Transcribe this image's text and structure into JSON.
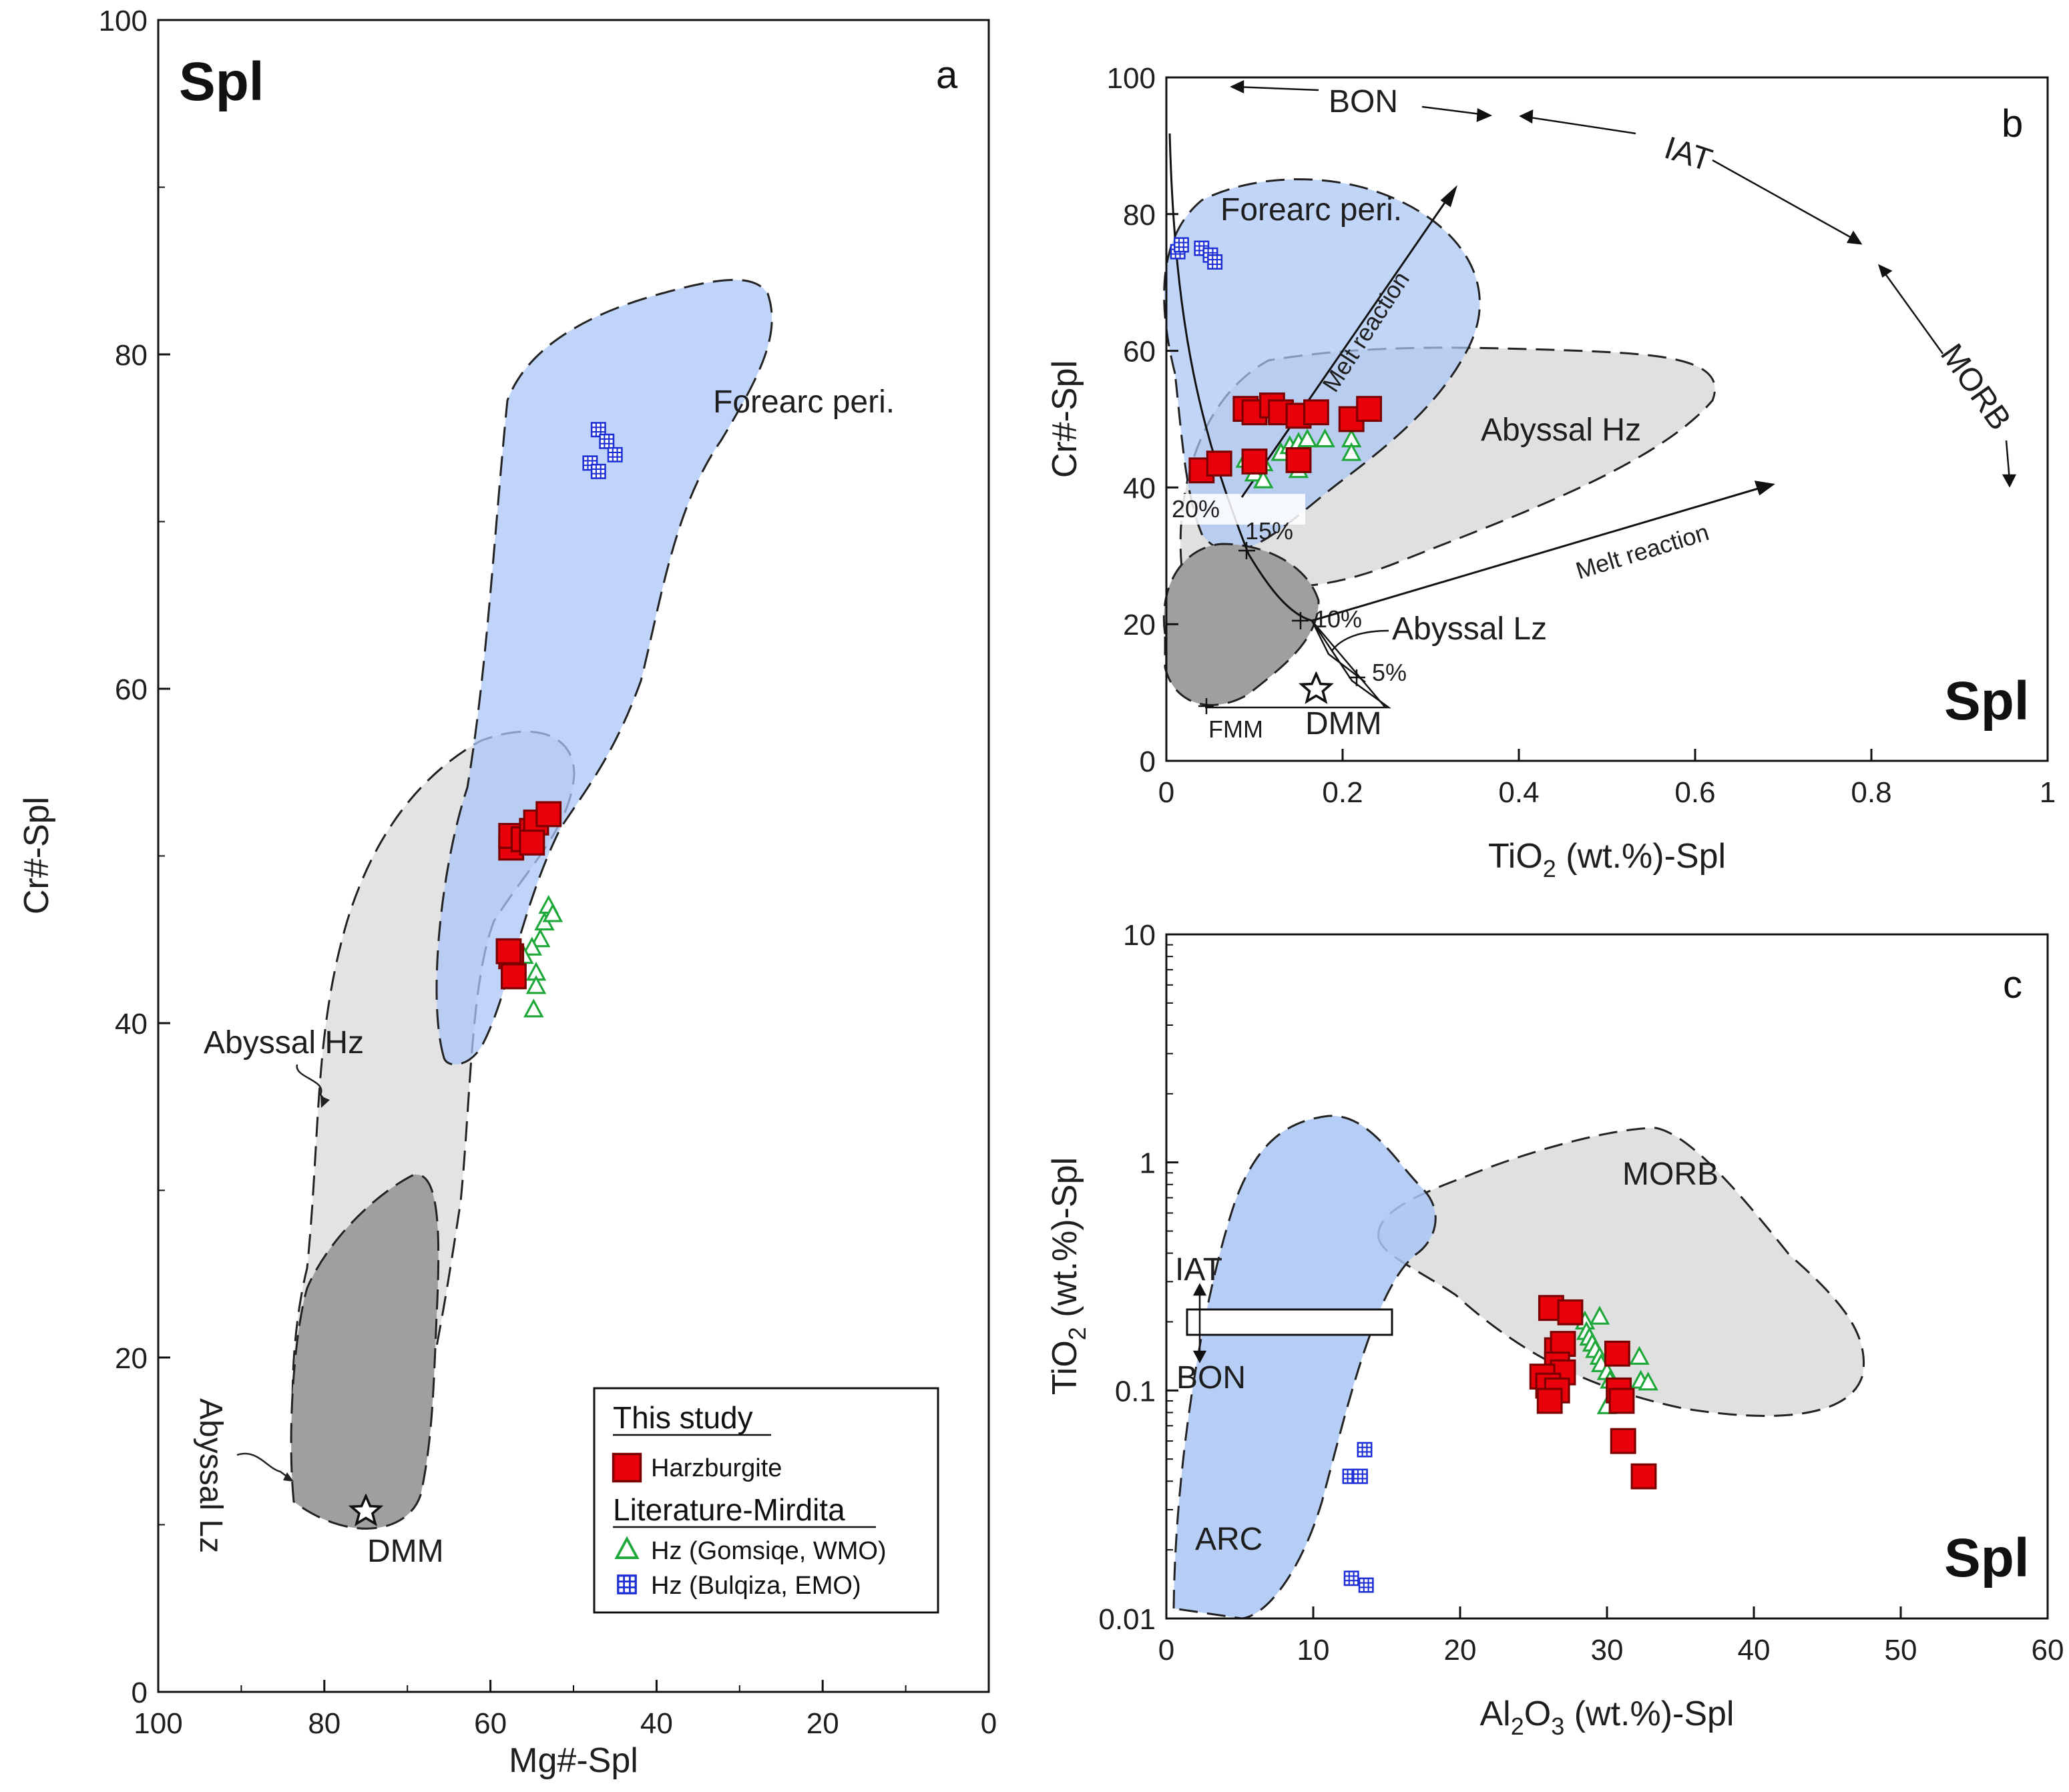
{
  "chart_data": [
    {
      "panel": "a",
      "type": "scatter",
      "mineral_label": "Spl",
      "panel_letter": "a",
      "xlabel": "Mg#-Spl",
      "ylabel": "Cr#-Spl",
      "xlim": [
        100,
        0
      ],
      "ylim": [
        0,
        100
      ],
      "xticks": [
        "100",
        "80",
        "60",
        "40",
        "20",
        "0"
      ],
      "yticks": [
        "0",
        "20",
        "40",
        "60",
        "80",
        "100"
      ],
      "fields": {
        "forearc": "Forearc peri.",
        "abyssal_hz": "Abyssal Hz",
        "abyssal_lz": "Abyssal Lz",
        "dmm": "DMM"
      },
      "dmm_point": {
        "x": 75,
        "y": 10.8
      },
      "series": [
        {
          "name": "Harzburgite",
          "marker": "red-square",
          "points": [
            [
              57.5,
              50.5
            ],
            [
              57.5,
              51.2
            ],
            [
              56,
              51
            ],
            [
              55,
              51.5
            ],
            [
              54.5,
              52
            ],
            [
              53,
              52.5
            ],
            [
              55,
              50.8
            ],
            [
              57.5,
              44
            ],
            [
              57.8,
              44.3
            ],
            [
              57.2,
              42.8
            ]
          ]
        },
        {
          "name": "Hz (Gomsiqe, WMO)",
          "marker": "green-triangle",
          "points": [
            [
              53,
              47
            ],
            [
              53.5,
              46
            ],
            [
              52.5,
              46.5
            ],
            [
              54,
              45
            ],
            [
              55,
              44.5
            ],
            [
              56,
              44
            ],
            [
              54.5,
              43
            ],
            [
              54.5,
              42.2
            ],
            [
              54.8,
              40.8
            ]
          ]
        },
        {
          "name": "Hz (Bulqiza, EMO)",
          "marker": "blue-cross-square",
          "points": [
            [
              47,
              75.5
            ],
            [
              46,
              74.8
            ],
            [
              45,
              74
            ],
            [
              48,
              73.5
            ],
            [
              47,
              73
            ]
          ]
        }
      ],
      "legend": {
        "this_study": "This study",
        "literature": "Literature-Mirdita",
        "items": [
          "Harzburgite",
          "Hz (Gomsiqe, WMO)",
          "Hz (Bulqiza, EMO)"
        ]
      }
    },
    {
      "panel": "b",
      "type": "scatter",
      "mineral_label": "Spl",
      "panel_letter": "b",
      "xlabel_main": "TiO",
      "xlabel_sub": "2",
      "xlabel_rest": " (wt.%)-Spl",
      "ylabel": "Cr#-Spl",
      "xlim": [
        0,
        1
      ],
      "ylim": [
        0,
        100
      ],
      "xticks": [
        "0",
        "0.2",
        "0.4",
        "0.6",
        "0.8",
        "1"
      ],
      "yticks": [
        "0",
        "20",
        "40",
        "60",
        "80",
        "100"
      ],
      "fields": {
        "forearc": "Forearc peri.",
        "abyssal_hz": "Abyssal Hz",
        "abyssal_lz": "Abyssal Lz",
        "dmm": "DMM",
        "fmm": "FMM"
      },
      "trend_labels": {
        "bon": "BON",
        "iat": "IAT",
        "morb": "MORB",
        "melt1": "Melt reaction",
        "melt2": "Melt reaction"
      },
      "melting_labels": [
        "20%",
        "15%",
        "10%",
        "5%"
      ],
      "dmm_point": {
        "x": 0.17,
        "y": 10.5
      },
      "series": [
        {
          "name": "Harzburgite",
          "marker": "red-square",
          "points": [
            [
              0.09,
              51.5
            ],
            [
              0.1,
              51
            ],
            [
              0.12,
              52
            ],
            [
              0.13,
              51
            ],
            [
              0.15,
              50.5
            ],
            [
              0.17,
              51
            ],
            [
              0.21,
              50
            ],
            [
              0.23,
              51.5
            ],
            [
              0.04,
              42.5
            ],
            [
              0.06,
              43.5
            ],
            [
              0.1,
              43.8
            ],
            [
              0.15,
              44
            ]
          ]
        },
        {
          "name": "Hz (Gomsiqe, WMO)",
          "marker": "green-triangle",
          "points": [
            [
              0.09,
              44
            ],
            [
              0.1,
              42
            ],
            [
              0.11,
              43.5
            ],
            [
              0.13,
              45
            ],
            [
              0.14,
              46
            ],
            [
              0.15,
              46.5
            ],
            [
              0.16,
              47
            ],
            [
              0.18,
              47
            ],
            [
              0.21,
              47
            ],
            [
              0.21,
              45
            ],
            [
              0.11,
              41
            ],
            [
              0.15,
              42.5
            ]
          ]
        },
        {
          "name": "Hz (Bulqiza, EMO)",
          "marker": "blue-cross-square",
          "points": [
            [
              0.013,
              74.5
            ],
            [
              0.017,
              75.5
            ],
            [
              0.04,
              75
            ],
            [
              0.05,
              74
            ],
            [
              0.055,
              73
            ]
          ]
        }
      ]
    },
    {
      "panel": "c",
      "type": "scatter",
      "mineral_label": "Spl",
      "panel_letter": "c",
      "xlabel_main": "Al",
      "xlabel_sub1": "2",
      "xlabel_mid": "O",
      "xlabel_sub2": "3",
      "xlabel_rest": " (wt.%)-Spl",
      "ylabel_main": "TiO",
      "ylabel_sub": "2",
      "ylabel_rest": " (wt.%)-Spl",
      "xlim": [
        0,
        60
      ],
      "ylim": [
        0.01,
        10
      ],
      "yscale": "log",
      "xticks": [
        "0",
        "10",
        "20",
        "30",
        "40",
        "50",
        "60"
      ],
      "yticks": [
        "0.01",
        "0.1",
        "1",
        "10"
      ],
      "fields": {
        "morb": "MORB",
        "arc": "ARC",
        "iat": "IAT",
        "bon": "BON"
      },
      "series": [
        {
          "name": "Harzburgite",
          "marker": "red-square",
          "points": [
            [
              26.2,
              0.23
            ],
            [
              27.5,
              0.22
            ],
            [
              26.6,
              0.15
            ],
            [
              27,
              0.16
            ],
            [
              26.6,
              0.13
            ],
            [
              27,
              0.12
            ],
            [
              25.6,
              0.115
            ],
            [
              26,
              0.105
            ],
            [
              26.6,
              0.1
            ],
            [
              26.1,
              0.09
            ],
            [
              30.7,
              0.145
            ],
            [
              30.8,
              0.1
            ],
            [
              31,
              0.09
            ],
            [
              31.1,
              0.06
            ],
            [
              32.5,
              0.042
            ]
          ]
        },
        {
          "name": "Hz (Gomsiqe, WMO)",
          "marker": "green-triangle",
          "points": [
            [
              28.5,
              0.2
            ],
            [
              29.5,
              0.21
            ],
            [
              28.6,
              0.18
            ],
            [
              28.8,
              0.17
            ],
            [
              29,
              0.16
            ],
            [
              29.2,
              0.15
            ],
            [
              29.5,
              0.14
            ],
            [
              29.6,
              0.13
            ],
            [
              30,
              0.12
            ],
            [
              30.2,
              0.11
            ],
            [
              30,
              0.085
            ],
            [
              32.2,
              0.14
            ],
            [
              32.3,
              0.11
            ],
            [
              32.8,
              0.108
            ]
          ]
        },
        {
          "name": "Hz (Bulqiza, EMO)",
          "marker": "blue-cross-square",
          "points": [
            [
              13.5,
              0.055
            ],
            [
              12.5,
              0.042
            ],
            [
              13.2,
              0.042
            ],
            [
              12.6,
              0.015
            ],
            [
              13.6,
              0.014
            ]
          ]
        }
      ]
    }
  ]
}
